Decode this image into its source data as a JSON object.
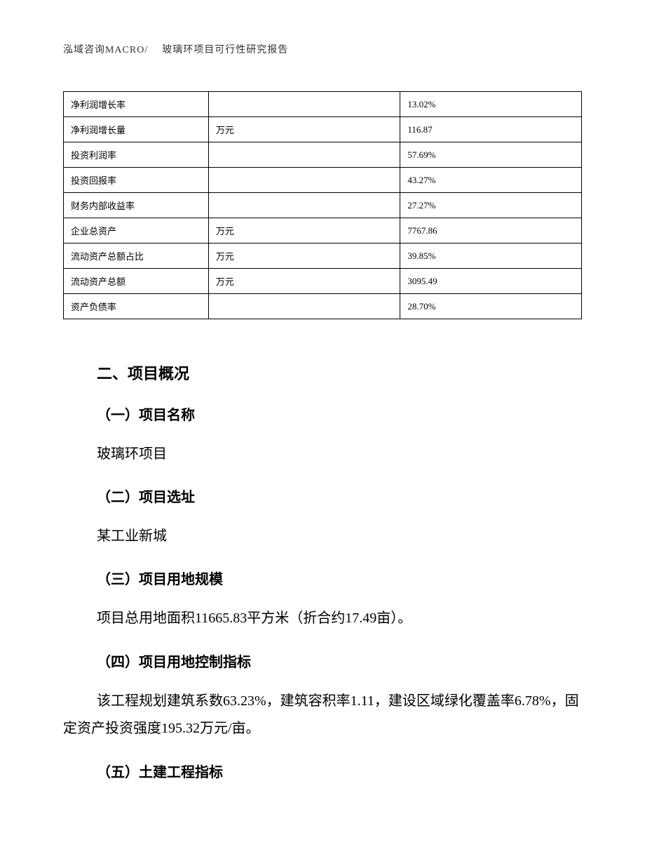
{
  "header": {
    "company": "泓域咨询MACRO/",
    "doc_title": "玻璃环项目可行性研究报告"
  },
  "table": {
    "rows": [
      {
        "label": "净利润增长率",
        "unit": "",
        "value": "13.02%"
      },
      {
        "label": "净利润增长量",
        "unit": "万元",
        "value": "116.87"
      },
      {
        "label": "投资利润率",
        "unit": "",
        "value": "57.69%"
      },
      {
        "label": "投资回报率",
        "unit": "",
        "value": "43.27%"
      },
      {
        "label": "财务内部收益率",
        "unit": "",
        "value": "27.27%"
      },
      {
        "label": "企业总资产",
        "unit": "万元",
        "value": "7767.86"
      },
      {
        "label": "流动资产总额占比",
        "unit": "万元",
        "value": "39.85%"
      },
      {
        "label": "流动资产总额",
        "unit": "万元",
        "value": "3095.49"
      },
      {
        "label": "资产负债率",
        "unit": "",
        "value": "28.70%"
      }
    ]
  },
  "section": {
    "heading": "二、项目概况",
    "items": [
      {
        "title": "（一）项目名称",
        "body": "玻璃环项目"
      },
      {
        "title": "（二）项目选址",
        "body": "某工业新城"
      },
      {
        "title": "（三）项目用地规模",
        "body": "项目总用地面积11665.83平方米（折合约17.49亩）。"
      },
      {
        "title": "（四）项目用地控制指标",
        "body": "该工程规划建筑系数63.23%，建筑容积率1.11，建设区域绿化覆盖率6.78%，固定资产投资强度195.32万元/亩。"
      },
      {
        "title": "（五）土建工程指标",
        "body": ""
      }
    ]
  }
}
